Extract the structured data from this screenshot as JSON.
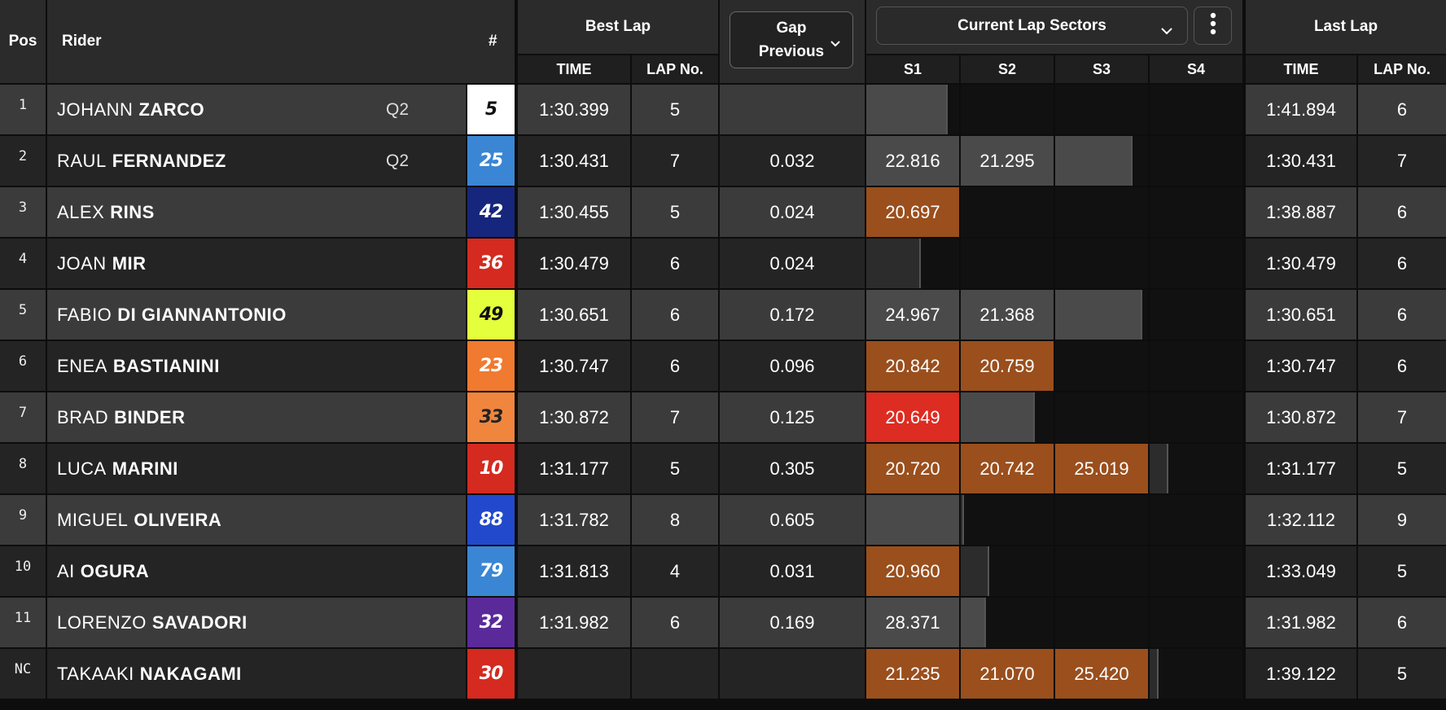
{
  "headers": {
    "pos": "Pos",
    "rider": "Rider",
    "number": "#",
    "best_lap": "Best Lap",
    "best_time": "TIME",
    "best_lapno": "LAP No.",
    "gap_line1": "Gap",
    "gap_line2": "Previous",
    "sectors_select": "Current Lap Sectors",
    "s1": "S1",
    "s2": "S2",
    "s3": "S3",
    "s4": "S4",
    "last_lap": "Last Lap",
    "last_time": "TIME",
    "last_lapno": "LAP No."
  },
  "icons": {
    "gap_dropdown": "chevron-down-icon",
    "sectors_dropdown": "chevron-down-icon",
    "more": "more-vertical-icon"
  },
  "colors": {
    "sector_personal_best": "#9a4f1d",
    "sector_overall_best": "#dd2c22",
    "sector_grey": "#4a4a4a",
    "row_light": "#3b3b3b",
    "row_dark": "#242424"
  },
  "rows": [
    {
      "pos": "1",
      "first": "JOHANN",
      "last": "ZARCO",
      "tag": "Q2",
      "number": "5",
      "num_bg": "#ffffff",
      "num_fg": "#111111",
      "best_time": "1:30.399",
      "best_lap": "5",
      "gap": "",
      "last_time": "1:41.894",
      "last_lap": "6",
      "sectors": [
        {
          "text": "",
          "color": "grey",
          "fill": 0.86
        },
        {
          "text": "",
          "color": "none",
          "fill": 0
        },
        {
          "text": "",
          "color": "none",
          "fill": 0
        },
        {
          "text": "",
          "color": "none",
          "fill": 0
        }
      ]
    },
    {
      "pos": "2",
      "first": "RAUL",
      "last": "FERNANDEZ",
      "tag": "Q2",
      "number": "25",
      "num_bg": "#3a86d4",
      "num_fg": "#ffffff",
      "best_time": "1:30.431",
      "best_lap": "7",
      "gap": "0.032",
      "last_time": "1:30.431",
      "last_lap": "7",
      "sectors": [
        {
          "text": "22.816",
          "color": "grey",
          "fill": 1
        },
        {
          "text": "21.295",
          "color": "grey",
          "fill": 1
        },
        {
          "text": "",
          "color": "grey",
          "fill": 0.82
        },
        {
          "text": "",
          "color": "none",
          "fill": 0
        }
      ]
    },
    {
      "pos": "3",
      "first": "ALEX",
      "last": "RINS",
      "tag": "",
      "number": "42",
      "num_bg": "#16267d",
      "num_fg": "#ffffff",
      "best_time": "1:30.455",
      "best_lap": "5",
      "gap": "0.024",
      "last_time": "1:38.887",
      "last_lap": "6",
      "sectors": [
        {
          "text": "20.697",
          "color": "orange",
          "fill": 1
        },
        {
          "text": "",
          "color": "none",
          "fill": 0
        },
        {
          "text": "",
          "color": "none",
          "fill": 0
        },
        {
          "text": "",
          "color": "none",
          "fill": 0
        }
      ]
    },
    {
      "pos": "4",
      "first": "JOAN",
      "last": "MIR",
      "tag": "",
      "number": "36",
      "num_bg": "#d42a1f",
      "num_fg": "#ffffff",
      "best_time": "1:30.479",
      "best_lap": "6",
      "gap": "0.024",
      "last_time": "1:30.479",
      "last_lap": "6",
      "sectors": [
        {
          "text": "",
          "color": "dark",
          "fill": 0.57
        },
        {
          "text": "",
          "color": "none",
          "fill": 0
        },
        {
          "text": "",
          "color": "none",
          "fill": 0
        },
        {
          "text": "",
          "color": "none",
          "fill": 0
        }
      ]
    },
    {
      "pos": "5",
      "first": "FABIO",
      "last": "DI GIANNANTONIO",
      "tag": "",
      "number": "49",
      "num_bg": "#e4ff3c",
      "num_fg": "#111111",
      "best_time": "1:30.651",
      "best_lap": "6",
      "gap": "0.172",
      "last_time": "1:30.651",
      "last_lap": "6",
      "sectors": [
        {
          "text": "24.967",
          "color": "grey",
          "fill": 1
        },
        {
          "text": "21.368",
          "color": "grey",
          "fill": 1
        },
        {
          "text": "",
          "color": "grey",
          "fill": 0.92
        },
        {
          "text": "",
          "color": "none",
          "fill": 0
        }
      ]
    },
    {
      "pos": "6",
      "first": "ENEA",
      "last": "BASTIANINI",
      "tag": "",
      "number": "23",
      "num_bg": "#f07a2f",
      "num_fg": "#ffffff",
      "best_time": "1:30.747",
      "best_lap": "6",
      "gap": "0.096",
      "last_time": "1:30.747",
      "last_lap": "6",
      "sectors": [
        {
          "text": "20.842",
          "color": "orange",
          "fill": 1
        },
        {
          "text": "20.759",
          "color": "orange",
          "fill": 1
        },
        {
          "text": "",
          "color": "none",
          "fill": 0
        },
        {
          "text": "",
          "color": "none",
          "fill": 0
        }
      ]
    },
    {
      "pos": "7",
      "first": "BRAD",
      "last": "BINDER",
      "tag": "",
      "number": "33",
      "num_bg": "#f0853e",
      "num_fg": "#222222",
      "best_time": "1:30.872",
      "best_lap": "7",
      "gap": "0.125",
      "last_time": "1:30.872",
      "last_lap": "7",
      "sectors": [
        {
          "text": "20.649",
          "color": "red",
          "fill": 1
        },
        {
          "text": "",
          "color": "grey",
          "fill": 0.78
        },
        {
          "text": "",
          "color": "none",
          "fill": 0
        },
        {
          "text": "",
          "color": "none",
          "fill": 0
        }
      ]
    },
    {
      "pos": "8",
      "first": "LUCA",
      "last": "MARINI",
      "tag": "",
      "number": "10",
      "num_bg": "#d42a1f",
      "num_fg": "#ffffff",
      "best_time": "1:31.177",
      "best_lap": "5",
      "gap": "0.305",
      "last_time": "1:31.177",
      "last_lap": "5",
      "sectors": [
        {
          "text": "20.720",
          "color": "orange",
          "fill": 1
        },
        {
          "text": "20.742",
          "color": "orange",
          "fill": 1
        },
        {
          "text": "25.019",
          "color": "orange",
          "fill": 1
        },
        {
          "text": "",
          "color": "dark",
          "fill": 0.18
        }
      ]
    },
    {
      "pos": "9",
      "first": "MIGUEL",
      "last": "OLIVEIRA",
      "tag": "",
      "number": "88",
      "num_bg": "#2249cc",
      "num_fg": "#ffffff",
      "best_time": "1:31.782",
      "best_lap": "8",
      "gap": "0.605",
      "last_time": "1:32.112",
      "last_lap": "9",
      "sectors": [
        {
          "text": "",
          "color": "grey",
          "fill": 1
        },
        {
          "text": "",
          "color": "dark",
          "fill": 0.02
        },
        {
          "text": "",
          "color": "none",
          "fill": 0
        },
        {
          "text": "",
          "color": "none",
          "fill": 0
        }
      ]
    },
    {
      "pos": "10",
      "first": "AI",
      "last": "OGURA",
      "tag": "",
      "number": "79",
      "num_bg": "#3a86d4",
      "num_fg": "#ffffff",
      "best_time": "1:31.813",
      "best_lap": "4",
      "gap": "0.031",
      "last_time": "1:33.049",
      "last_lap": "5",
      "sectors": [
        {
          "text": "20.960",
          "color": "orange",
          "fill": 1
        },
        {
          "text": "",
          "color": "dark",
          "fill": 0.29
        },
        {
          "text": "",
          "color": "none",
          "fill": 0
        },
        {
          "text": "",
          "color": "none",
          "fill": 0
        }
      ]
    },
    {
      "pos": "11",
      "first": "LORENZO",
      "last": "SAVADORI",
      "tag": "",
      "number": "32",
      "num_bg": "#5a2a9a",
      "num_fg": "#ffffff",
      "best_time": "1:31.982",
      "best_lap": "6",
      "gap": "0.169",
      "last_time": "1:31.982",
      "last_lap": "6",
      "sectors": [
        {
          "text": "28.371",
          "color": "grey",
          "fill": 1
        },
        {
          "text": "",
          "color": "grey",
          "fill": 0.25
        },
        {
          "text": "",
          "color": "none",
          "fill": 0
        },
        {
          "text": "",
          "color": "none",
          "fill": 0
        }
      ]
    },
    {
      "pos": "NC",
      "first": "TAKAAKI",
      "last": "NAKAGAMI",
      "tag": "",
      "number": "30",
      "num_bg": "#d42a1f",
      "num_fg": "#ffffff",
      "best_time": "",
      "best_lap": "",
      "gap": "",
      "last_time": "1:39.122",
      "last_lap": "5",
      "sectors": [
        {
          "text": "21.235",
          "color": "orange",
          "fill": 1
        },
        {
          "text": "21.070",
          "color": "orange",
          "fill": 1
        },
        {
          "text": "25.420",
          "color": "orange",
          "fill": 1
        },
        {
          "text": "",
          "color": "dark",
          "fill": 0.08
        }
      ]
    }
  ]
}
